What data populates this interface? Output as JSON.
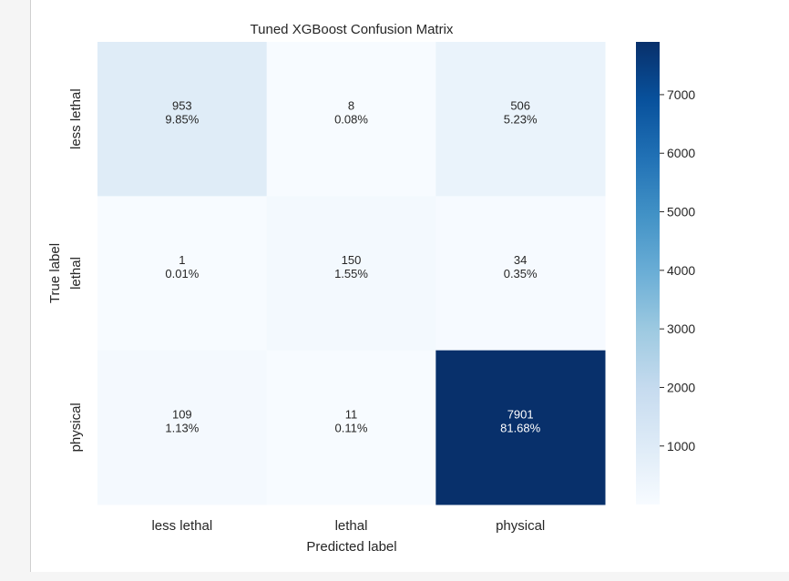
{
  "chart_data": {
    "type": "heatmap",
    "title": "Tuned XGBoost Confusion Matrix",
    "xlabel": "Predicted label",
    "ylabel": "True label",
    "x_categories": [
      "less lethal",
      "lethal",
      "physical"
    ],
    "y_categories": [
      "less lethal",
      "lethal",
      "physical"
    ],
    "values": [
      [
        953,
        8,
        506
      ],
      [
        1,
        150,
        34
      ],
      [
        109,
        11,
        7901
      ]
    ],
    "cell_labels": [
      [
        [
          "953",
          "9.85%"
        ],
        [
          "8",
          "0.08%"
        ],
        [
          "506",
          "5.23%"
        ]
      ],
      [
        [
          "1",
          "0.01%"
        ],
        [
          "150",
          "1.55%"
        ],
        [
          "34",
          "0.35%"
        ]
      ],
      [
        [
          "109",
          "1.13%"
        ],
        [
          "11",
          "0.11%"
        ],
        [
          "7901",
          "81.68%"
        ]
      ]
    ],
    "colormap": "Blues",
    "vmin": 1,
    "vmax": 7901,
    "colorbar_ticks": [
      1000,
      2000,
      3000,
      4000,
      5000,
      6000,
      7000
    ],
    "grid": false
  }
}
